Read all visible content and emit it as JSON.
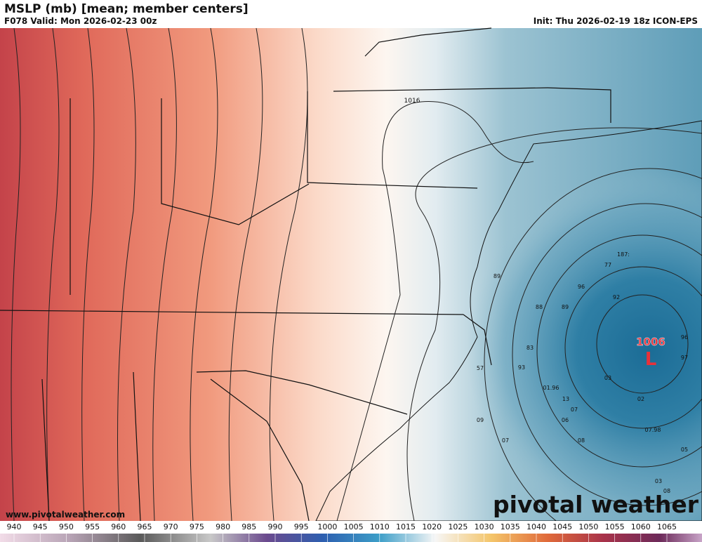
{
  "header": {
    "title": "MSLP (mb) [mean; member centers]",
    "valid": "F078 Valid: Mon 2026-02-23 00z",
    "init": "Init: Thu 2026-02-19 18z ICON-EPS"
  },
  "map": {
    "isobar_label": "1016",
    "low_value": "1006",
    "low_symbol": "L",
    "member_centers": [
      "187:",
      "77",
      "96",
      "92",
      "89",
      "88",
      "89",
      "83",
      "93",
      "57",
      "03",
      "01.96",
      "13",
      "02",
      "07",
      "06",
      "09",
      "07.98",
      "07",
      "08",
      "05",
      "03",
      "08",
      "96",
      "97"
    ]
  },
  "watermark": {
    "brand": "pivotal weather",
    "url": "www.pivotalweather.com"
  },
  "colorbar": {
    "ticks": [
      940,
      945,
      950,
      955,
      960,
      965,
      970,
      975,
      980,
      985,
      990,
      995,
      1000,
      1005,
      1010,
      1015,
      1020,
      1025,
      1030,
      1035,
      1040,
      1045,
      1050,
      1055,
      1060,
      1065
    ]
  }
}
